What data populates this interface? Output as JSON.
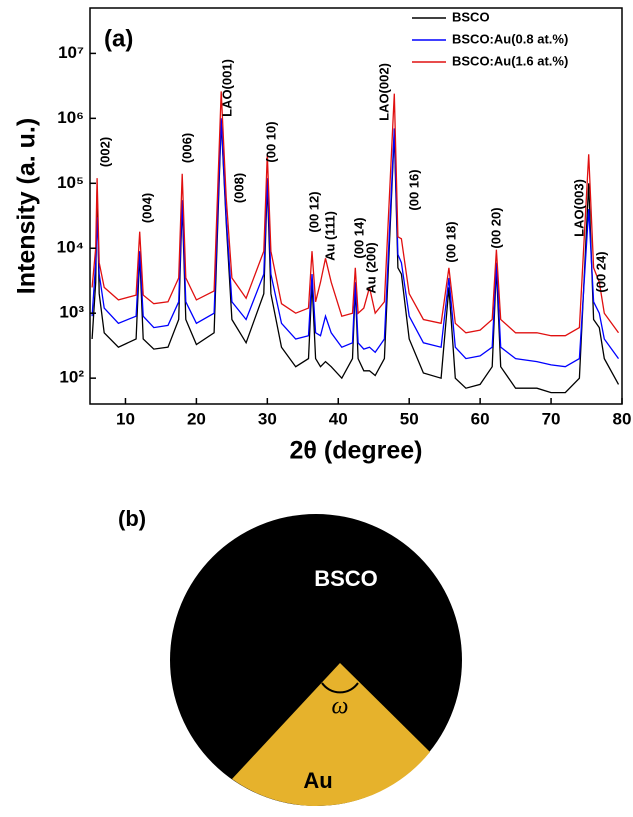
{
  "chart_data": {
    "type": "line",
    "panel_label": "(a)",
    "xlabel": "2θ (degree)",
    "ylabel": "Intensity (a. u.)",
    "log_y": true,
    "grid": false,
    "legend": "upper right",
    "xlim": [
      5,
      80
    ],
    "xticks": [
      10,
      20,
      30,
      40,
      50,
      60,
      70,
      80
    ],
    "ylim": [
      40,
      50000000
    ],
    "yticks": [
      {
        "value": 100,
        "label": "10²"
      },
      {
        "value": 1000,
        "label": "10³"
      },
      {
        "value": 10000,
        "label": "10⁴"
      },
      {
        "value": 100000,
        "label": "10⁵"
      },
      {
        "value": 1000000,
        "label": "10⁶"
      },
      {
        "value": 10000000,
        "label": "10⁷"
      }
    ],
    "x": [
      5.3,
      5.8,
      6.0,
      6.3,
      7,
      9,
      11.5,
      12.0,
      12.5,
      14,
      16,
      17.5,
      18.0,
      18.5,
      20,
      22.5,
      23.5,
      24.2,
      25,
      27,
      29.5,
      30.0,
      30.5,
      32,
      34,
      35.8,
      36.3,
      36.8,
      37.5,
      38.2,
      39,
      40.5,
      42.0,
      42.4,
      42.8,
      43.6,
      44.4,
      45.2,
      46.5,
      47.9,
      48.4,
      48.9,
      50,
      52,
      54.5,
      55.6,
      56.5,
      58,
      60,
      61.7,
      62.3,
      62.9,
      65,
      68,
      70,
      72,
      74,
      75.3,
      76.0,
      76.8,
      77.5,
      79.5
    ],
    "series": [
      {
        "name": "BSCO",
        "color": "#000000",
        "values": [
          400,
          3000,
          80000,
          2000,
          500,
          300,
          400,
          8000,
          400,
          280,
          300,
          800,
          50000,
          800,
          330,
          500,
          900000,
          25000,
          800,
          350,
          2000,
          100000,
          2000,
          300,
          150,
          200,
          3000,
          200,
          150,
          180,
          150,
          100,
          200,
          2500,
          200,
          130,
          130,
          110,
          200,
          600000,
          5000,
          4000,
          400,
          120,
          100,
          2500,
          100,
          70,
          80,
          150,
          5000,
          150,
          70,
          70,
          60,
          60,
          100,
          100000,
          800,
          600,
          200,
          80
        ]
      },
      {
        "name": "BSCO:Au(0.8 at.%)",
        "color": "#0000ff",
        "values": [
          900,
          6000,
          30000,
          4000,
          1200,
          700,
          900,
          9000,
          900,
          600,
          650,
          1500,
          55000,
          1500,
          700,
          1000,
          1000000,
          30000,
          1500,
          800,
          4000,
          120000,
          4000,
          700,
          400,
          450,
          4000,
          500,
          450,
          900,
          500,
          300,
          350,
          3000,
          350,
          280,
          300,
          250,
          400,
          700000,
          8000,
          6000,
          900,
          350,
          300,
          3500,
          300,
          200,
          220,
          300,
          6000,
          300,
          200,
          180,
          160,
          150,
          200,
          40000,
          1500,
          1000,
          400,
          200
        ]
      },
      {
        "name": "BSCO:Au(1.6 at.%)",
        "color": "#e01010",
        "values": [
          2500,
          10000,
          120000,
          6000,
          2500,
          1600,
          1900,
          18000,
          1900,
          1400,
          1500,
          3500,
          140000,
          3500,
          1600,
          2200,
          2600000,
          60000,
          3500,
          1700,
          9000,
          280000,
          9000,
          1400,
          1000,
          1200,
          9000,
          1500,
          3000,
          7000,
          3000,
          900,
          1000,
          5000,
          1000,
          1200,
          2500,
          1000,
          1500,
          2400000,
          15000,
          14000,
          2000,
          800,
          700,
          5000,
          700,
          500,
          550,
          800,
          9500,
          800,
          500,
          500,
          450,
          450,
          600,
          280000,
          5000,
          3000,
          1000,
          500
        ]
      }
    ],
    "annotations": [
      "(002)",
      "(004)",
      "(006)",
      "LAO(001)",
      "(008)",
      "(00 10)",
      "(00 12)",
      "Au (111)",
      "(00 14)",
      "Au (200)",
      "LAO(002)",
      "(00 16)",
      "(00 18)",
      "(00 20)",
      "LAO(003)",
      "(00 24)"
    ]
  },
  "diagram": {
    "panel_label": "(b)",
    "top_label": "BSCO",
    "angle_label": "ω",
    "sector_label": "Au"
  }
}
